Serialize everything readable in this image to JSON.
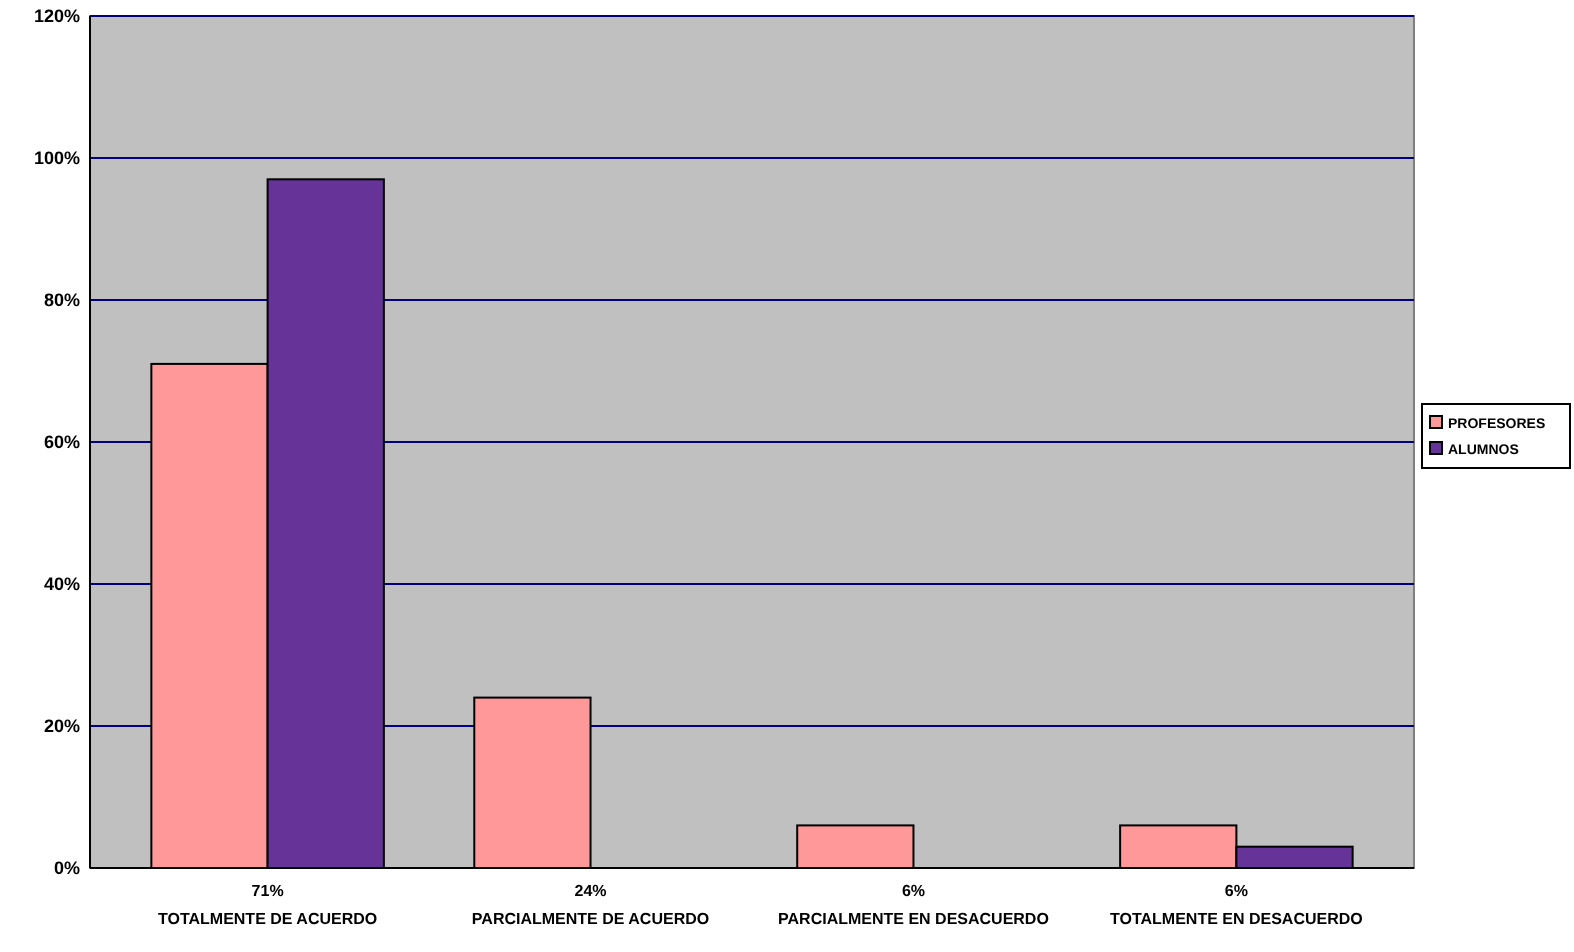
{
  "chart_data": {
    "type": "bar",
    "categories": [
      "71%\nTOTALMENTE DE ACUERDO",
      "24%\nPARCIALMENTE DE ACUERDO",
      "6%\nPARCIALMENTE EN DESACUERDO",
      "6%\nTOTALMENTE EN DESACUERDO"
    ],
    "series": [
      {
        "name": "PROFESORES",
        "color": "#ff9999",
        "values": [
          71,
          24,
          6,
          6
        ]
      },
      {
        "name": "ALUMNOS",
        "color": "#663399",
        "values": [
          97,
          0,
          0,
          3
        ]
      }
    ],
    "ylim": [
      0,
      120
    ],
    "yticks": [
      {
        "value": 0,
        "label": "0%"
      },
      {
        "value": 20,
        "label": "20%"
      },
      {
        "value": 40,
        "label": "40%"
      },
      {
        "value": 60,
        "label": "60%"
      },
      {
        "value": 80,
        "label": "80%"
      },
      {
        "value": 100,
        "label": "100%"
      },
      {
        "value": 120,
        "label": "120%"
      }
    ],
    "grid": "y",
    "legend": "right"
  }
}
